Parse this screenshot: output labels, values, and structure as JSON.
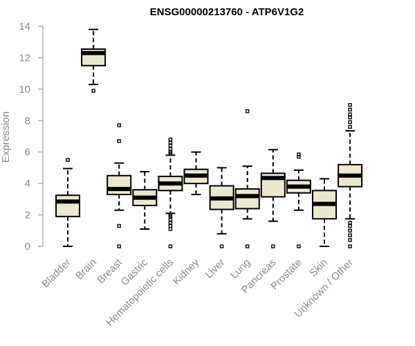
{
  "chart_data": {
    "type": "box",
    "title": "ENSG00000213760 - ATP6V1G2",
    "ylabel": "Expression",
    "xlabel": "",
    "ylim": [
      0,
      14
    ],
    "yticks": [
      0,
      2,
      4,
      6,
      8,
      10,
      12,
      14
    ],
    "box_color": "#ede7d0",
    "categories": [
      "Bladder",
      "Brain",
      "Breast",
      "Gastric",
      "Hematopoietic cells",
      "Kidney",
      "Liver",
      "Lung",
      "Pancreas",
      "Prostate",
      "Skin",
      "Unknown / Other"
    ],
    "boxes": [
      {
        "q1": 1.9,
        "median": 2.85,
        "q3": 3.25,
        "whisker_low": 0.0,
        "whisker_high": 4.95,
        "outliers": [
          5.5
        ]
      },
      {
        "q1": 11.5,
        "median": 12.3,
        "q3": 12.55,
        "whisker_low": 10.3,
        "whisker_high": 13.8,
        "outliers": [
          9.9
        ]
      },
      {
        "q1": 3.3,
        "median": 3.65,
        "q3": 4.5,
        "whisker_low": 2.3,
        "whisker_high": 5.3,
        "outliers": [
          0.0,
          1.3,
          6.7,
          7.7
        ]
      },
      {
        "q1": 2.6,
        "median": 3.1,
        "q3": 3.6,
        "whisker_low": 1.1,
        "whisker_high": 4.75,
        "outliers": []
      },
      {
        "q1": 3.55,
        "median": 4.0,
        "q3": 4.45,
        "whisker_low": 2.1,
        "whisker_high": 5.8,
        "outliers": [
          0.0,
          1.1,
          1.3,
          1.5,
          1.7,
          1.9,
          2.0,
          5.9,
          6.0,
          6.2,
          6.4,
          6.6,
          6.8
        ]
      },
      {
        "q1": 4.0,
        "median": 4.5,
        "q3": 4.9,
        "whisker_low": 3.3,
        "whisker_high": 6.0,
        "outliers": []
      },
      {
        "q1": 2.35,
        "median": 3.05,
        "q3": 3.85,
        "whisker_low": 0.8,
        "whisker_high": 5.0,
        "outliers": [
          0.0
        ]
      },
      {
        "q1": 2.4,
        "median": 3.2,
        "q3": 3.65,
        "whisker_low": 1.75,
        "whisker_high": 5.1,
        "outliers": [
          0.0,
          8.6
        ]
      },
      {
        "q1": 3.15,
        "median": 4.35,
        "q3": 4.65,
        "whisker_low": 1.6,
        "whisker_high": 6.15,
        "outliers": [
          0.0
        ]
      },
      {
        "q1": 3.4,
        "median": 3.8,
        "q3": 4.2,
        "whisker_low": 2.3,
        "whisker_high": 4.85,
        "outliers": [
          0.0,
          5.7,
          5.85
        ]
      },
      {
        "q1": 1.75,
        "median": 2.7,
        "q3": 3.55,
        "whisker_low": 0.0,
        "whisker_high": 4.3,
        "outliers": []
      },
      {
        "q1": 3.8,
        "median": 4.5,
        "q3": 5.2,
        "whisker_low": 1.75,
        "whisker_high": 7.35,
        "outliers": [
          0.0,
          0.4,
          0.7,
          1.0,
          1.3,
          1.5,
          7.6,
          7.9,
          8.2,
          8.4,
          8.7,
          9.0
        ]
      }
    ]
  }
}
